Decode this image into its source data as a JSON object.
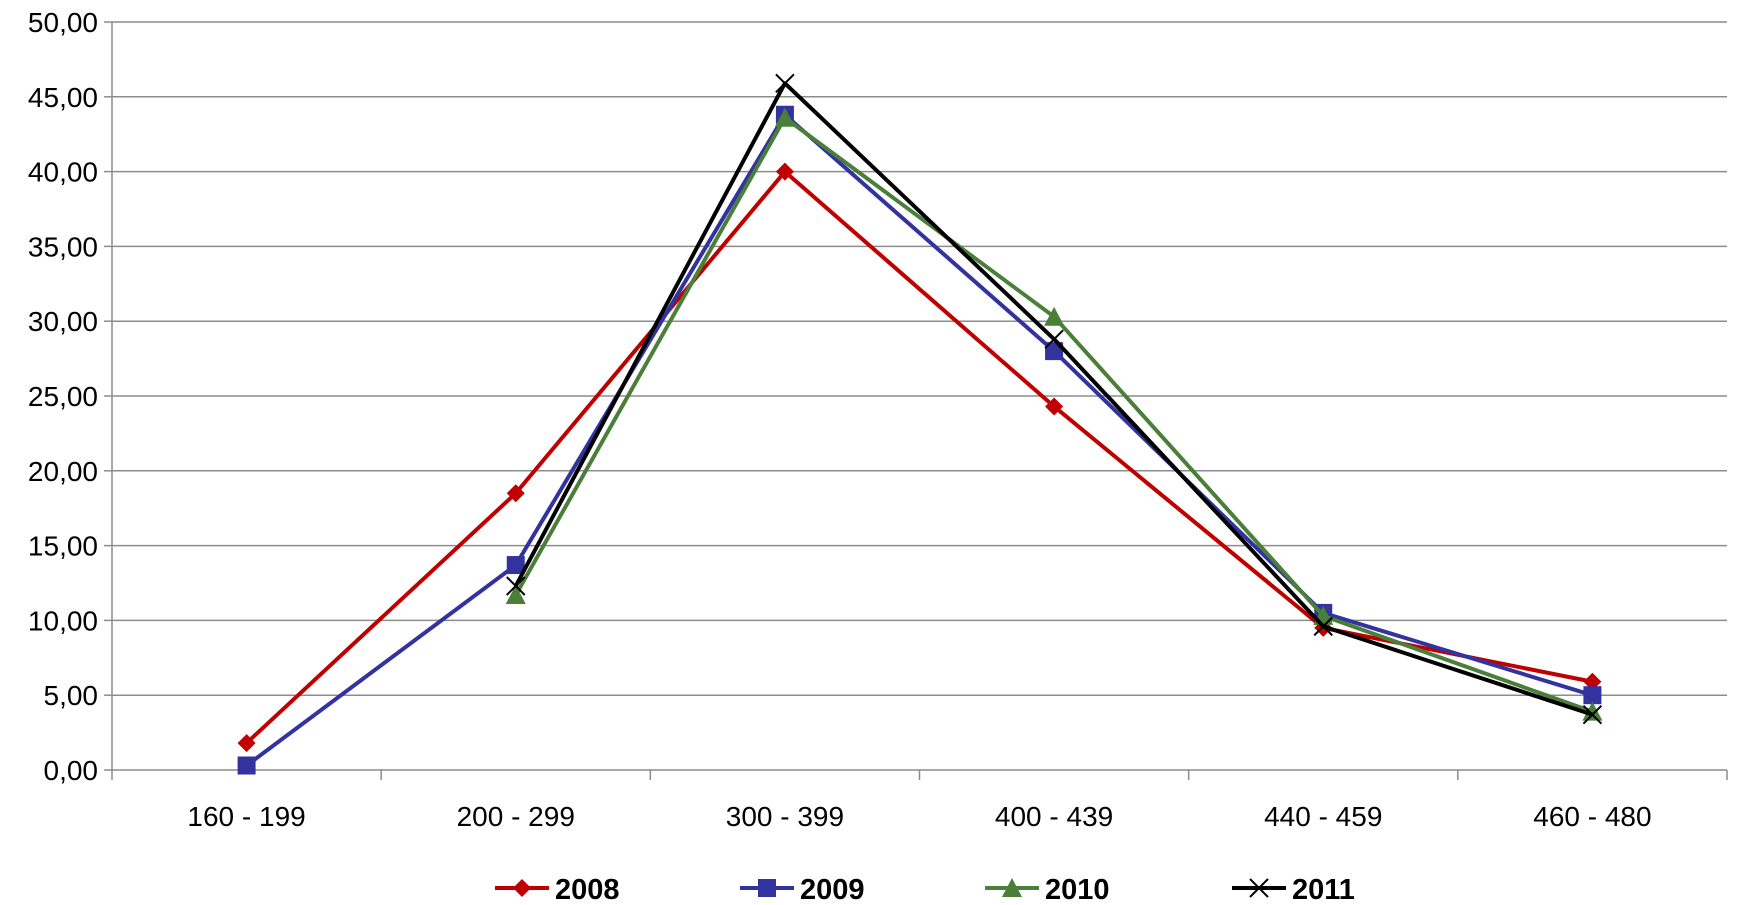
{
  "chart_data": {
    "type": "line",
    "title": "",
    "xlabel": "",
    "ylabel": "",
    "categories": [
      "160 - 199",
      "200 - 299",
      "300 - 399",
      "400 - 439",
      "440 - 459",
      "460 - 480"
    ],
    "ylim": [
      0,
      50
    ],
    "yticks": [
      "0,00",
      "5,00",
      "10,00",
      "15,00",
      "20,00",
      "25,00",
      "30,00",
      "35,00",
      "40,00",
      "45,00",
      "50,00"
    ],
    "grid": true,
    "legend_position": "bottom",
    "series": [
      {
        "name": "2008",
        "color": "#c00000",
        "marker": "diamond",
        "values": [
          1.8,
          18.5,
          40.0,
          24.3,
          9.5,
          5.9
        ]
      },
      {
        "name": "2009",
        "color": "#3333a0",
        "marker": "square",
        "values": [
          0.3,
          13.7,
          43.8,
          28.0,
          10.5,
          5.0
        ]
      },
      {
        "name": "2010",
        "color": "#4a7f3a",
        "marker": "triangle",
        "values": [
          null,
          11.7,
          43.6,
          30.3,
          10.3,
          3.9
        ]
      },
      {
        "name": "2011",
        "color": "#000000",
        "marker": "x",
        "values": [
          null,
          12.3,
          45.9,
          28.8,
          9.6,
          3.7
        ]
      }
    ]
  }
}
